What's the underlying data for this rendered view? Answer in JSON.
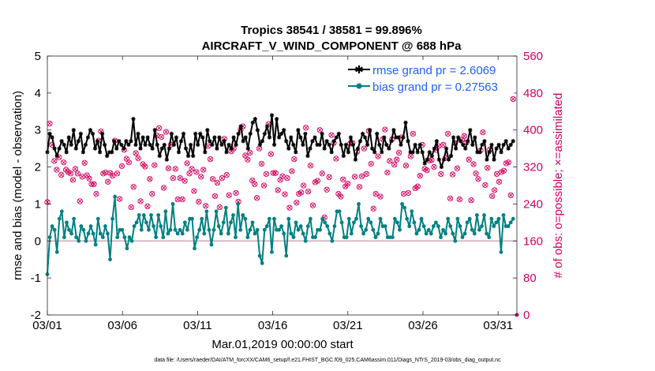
{
  "chart_data": {
    "type": "line",
    "title": "Tropics 38541 / 38581 = 99.896%",
    "subtitle": "AIRCRAFT_V_WIND_COMPONENT @ 688 hPa",
    "ylabel": "rmse and bias (model - observation)",
    "ylabel_right": "# of obs: o=possible; ×=assimilated",
    "xlabel": "Mar.01,2019 00:00:00 start",
    "footer": "data file: /Users/raeder/DAI/ATM_forcXX/CAM6_setup/f.e21.FHIST_BGC.f09_025.CAM6assim.011/Diags_NTrS_2019-03/obs_diag_output.nc",
    "ylim": [
      -2,
      5
    ],
    "yticks": [
      "-2",
      "-1",
      "0",
      "1",
      "2",
      "3",
      "4",
      "5"
    ],
    "ylim_right": [
      0,
      560
    ],
    "yticks_right": [
      "0",
      "80",
      "160",
      "240",
      "320",
      "400",
      "480",
      "560"
    ],
    "xlim": [
      0,
      31.25
    ],
    "xtick_positions": [
      0,
      5,
      10,
      15,
      20,
      25,
      30
    ],
    "xtick_labels": [
      "03/01",
      "03/06",
      "03/11",
      "03/16",
      "03/21",
      "03/26",
      "03/31"
    ],
    "series": [
      {
        "name": "rmse grand pr = 2.6069",
        "color": "#000000",
        "values": [
          2.4,
          2.9,
          2.8,
          2.5,
          2.3,
          2.5,
          2.7,
          2.6,
          2.4,
          2.8,
          2.6,
          3.0,
          2.5,
          2.7,
          2.9,
          2.4,
          2.6,
          2.8,
          3.0,
          2.9,
          2.5,
          2.7,
          2.4,
          2.9,
          2.6,
          2.3,
          2.4,
          2.4,
          2.7,
          2.5,
          2.7,
          2.6,
          2.5,
          2.7,
          2.6,
          2.7,
          3.3,
          2.6,
          2.9,
          2.5,
          2.8,
          2.6,
          2.8,
          2.6,
          2.5,
          3.0,
          2.6,
          2.3,
          2.5,
          2.6,
          2.2,
          2.5,
          2.9,
          2.6,
          2.8,
          2.4,
          2.7,
          2.9,
          2.5,
          2.3,
          2.6,
          2.3,
          2.9,
          2.6,
          2.9,
          2.8,
          2.4,
          3.0,
          2.7,
          2.6,
          2.8,
          2.5,
          2.8,
          2.6,
          2.7,
          2.4,
          2.6,
          2.5,
          2.8,
          2.6,
          2.9,
          3.1,
          2.7,
          2.8,
          2.5,
          2.9,
          3.2,
          3.3,
          3.0,
          2.6,
          2.7,
          2.9,
          3.1,
          2.8,
          3.4,
          2.6,
          3.3,
          2.8,
          2.9,
          3.0,
          2.7,
          2.5,
          2.8,
          2.6,
          2.4,
          3.0,
          2.8,
          2.6,
          2.9,
          2.3,
          2.5,
          2.7,
          2.8,
          2.6,
          2.6,
          2.9,
          2.5,
          2.7,
          2.6,
          2.4,
          2.7,
          2.8,
          2.9,
          2.6,
          2.3,
          2.6,
          2.4,
          2.8,
          2.6,
          2.2,
          2.5,
          2.7,
          2.9,
          2.8,
          2.6,
          3.0,
          2.5,
          2.4,
          2.9,
          2.6,
          2.4,
          2.8,
          2.6,
          2.5,
          2.7,
          3.0,
          2.8,
          2.8,
          2.6,
          2.8,
          3.2,
          2.7,
          2.4,
          2.4,
          2.6,
          2.4,
          2.6,
          2.4,
          2.1,
          2.2,
          2.4,
          2.3,
          2.5,
          2.7,
          2.2,
          2.0,
          2.2,
          2.5,
          2.2,
          2.3,
          2.8,
          2.5,
          2.8,
          2.7,
          2.6,
          2.5,
          2.7,
          3.0,
          2.6,
          2.8,
          2.4,
          2.4,
          2.6,
          2.7,
          2.2,
          2.4,
          2.6,
          2.2,
          2.5,
          2.6,
          2.4,
          2.6,
          2.7,
          2.5,
          2.6,
          2.7
        ]
      },
      {
        "name": "bias grand pr = 0.27563",
        "color": "#008080",
        "values": [
          -0.9,
          0.1,
          0.4,
          0.3,
          -0.3,
          0.6,
          0.8,
          0.1,
          0.5,
          0.3,
          0.2,
          0.6,
          0.1,
          0.0,
          0.4,
          0.3,
          0.0,
          0.2,
          0.4,
          0.2,
          -0.1,
          0.6,
          0.2,
          0.1,
          0.4,
          0.2,
          -0.5,
          0.6,
          1.2,
          0.1,
          0.3,
          0.3,
          0.1,
          -0.2,
          0.1,
          0.0,
          0.4,
          0.5,
          0.7,
          0.3,
          0.7,
          0.5,
          0.3,
          0.7,
          0.4,
          0.1,
          0.7,
          0.4,
          0.1,
          0.8,
          0.2,
          0.3,
          1.0,
          0.3,
          0.2,
          0.3,
          0.2,
          0.5,
          0.3,
          0.6,
          0.6,
          -0.2,
          0.1,
          0.3,
          0.6,
          0.2,
          0.8,
          0.3,
          -0.1,
          0.3,
          0.8,
          0.4,
          0.2,
          0.5,
          0.9,
          0.2,
          0.5,
          0.7,
          0.1,
          1.0,
          0.3,
          0.7,
          0.6,
          0.1,
          0.3,
          0.5,
          0.2,
          0.3,
          -0.4,
          -0.6,
          0.3,
          0.4,
          0.6,
          -0.3,
          0.6,
          0.3,
          0.3,
          0.4,
          0.2,
          -0.4,
          0.6,
          0.2,
          0.1,
          0.5,
          0.3,
          0.4,
          0.2,
          0.0,
          0.4,
          0.6,
          0.1,
          0.1,
          0.3,
          0.3,
          0.6,
          0.5,
          0.4,
          0.2,
          0.0,
          0.4,
          0.8,
          0.8,
          0.5,
          0.1,
          0.1,
          0.6,
          0.2,
          0.5,
          0.6,
          1.0,
          0.4,
          0.2,
          0.3,
          0.6,
          0.5,
          0.3,
          0.1,
          0.2,
          0.6,
          0.4,
          0.4,
          0.1,
          0.1,
          0.1,
          0.6,
          0.5,
          0.3,
          1.0,
          0.9,
          0.6,
          0.4,
          0.8,
          0.5,
          0.2,
          0.3,
          0.6,
          0.4,
          0.2,
          0.3,
          0.2,
          0.4,
          0.5,
          0.4,
          0.1,
          0.3,
          0.2,
          0.6,
          0.4,
          0.2,
          0.0,
          0.6,
          0.4,
          0.1,
          0.2,
          0.5,
          0.6,
          0.3,
          0.2,
          0.7,
          0.3,
          0.4,
          0.7,
          0.2,
          0.1,
          0.6,
          0.4,
          0.5,
          0.6,
          -0.3,
          0.7,
          0.4,
          0.4,
          0.5,
          0.6
        ]
      }
    ],
    "obs_series": {
      "name": "# of obs",
      "color": "#d6005e",
      "possible": [
        244,
        414,
        368,
        333,
        314,
        341,
        303,
        330,
        314,
        309,
        306,
        292,
        316,
        306,
        246,
        299,
        329,
        302,
        295,
        283,
        283,
        262,
        377,
        397,
        306,
        308,
        288,
        307,
        301,
        377,
        306,
        251,
        322,
        357,
        338,
        330,
        233,
        277,
        350,
        339,
        246,
        326,
        321,
        235,
        294,
        262,
        324,
        388,
        404,
        385,
        275,
        396,
        317,
        368,
        296,
        316,
        250,
        296,
        250,
        290,
        328,
        306,
        316,
        268,
        309,
        245,
        299,
        314,
        236,
        365,
        337,
        294,
        257,
        286,
        233,
        296,
        381,
        303,
        259,
        354,
        360,
        264,
        245,
        401,
        408,
        345,
        336,
        351,
        291,
        283,
        253,
        360,
        327,
        280,
        305,
        413,
        348,
        307,
        307,
        270,
        292,
        300,
        261,
        296,
        232,
        311,
        337,
        243,
        262,
        265,
        280,
        405,
        267,
        323,
        237,
        287,
        290,
        400,
        306,
        211,
        271,
        298,
        389,
        372,
        338,
        262,
        256,
        293,
        278,
        284,
        371,
        372,
        299,
        353,
        277,
        300,
        360,
        305,
        398,
        327,
        230,
        262,
        343,
        256,
        380,
        401,
        308,
        333,
        380,
        325,
        336,
        351,
        384,
        262,
        323,
        264,
        343,
        392,
        274,
        278,
        301,
        368,
        316,
        313,
        334,
        335,
        320,
        357,
        365,
        305,
        368,
        340,
        392,
        252,
        304,
        372,
        317,
        250,
        379,
        387,
        373,
        336,
        248,
        326,
        306,
        294,
        356,
        395,
        281,
        318,
        358,
        257,
        270,
        305,
        288,
        309,
        312,
        328,
        330,
        259,
        467
      ],
      "assimilated": [
        244,
        414,
        368,
        333,
        314,
        341,
        303,
        330,
        314,
        309,
        306,
        292,
        316,
        306,
        246,
        299,
        329,
        302,
        295,
        283,
        283,
        262,
        377,
        397,
        306,
        308,
        288,
        307,
        301,
        377,
        306,
        251,
        322,
        357,
        338,
        330,
        233,
        277,
        350,
        339,
        246,
        326,
        321,
        235,
        294,
        262,
        324,
        388,
        404,
        385,
        275,
        396,
        317,
        368,
        296,
        316,
        250,
        296,
        250,
        290,
        328,
        306,
        316,
        268,
        309,
        245,
        299,
        314,
        236,
        365,
        337,
        294,
        257,
        286,
        233,
        296,
        381,
        303,
        259,
        354,
        360,
        264,
        245,
        401,
        408,
        345,
        336,
        351,
        291,
        283,
        253,
        360,
        327,
        280,
        305,
        413,
        348,
        307,
        307,
        270,
        292,
        300,
        261,
        296,
        232,
        311,
        337,
        243,
        262,
        265,
        280,
        405,
        267,
        323,
        237,
        287,
        290,
        400,
        306,
        211,
        271,
        298,
        389,
        372,
        338,
        262,
        256,
        293,
        278,
        284,
        371,
        372,
        299,
        353,
        277,
        300,
        360,
        305,
        398,
        327,
        230,
        262,
        343,
        256,
        380,
        401,
        308,
        333,
        380,
        325,
        336,
        351,
        384,
        262,
        323,
        264,
        343,
        392,
        274,
        278,
        301,
        368,
        316,
        313,
        334,
        335,
        320,
        357,
        365,
        305,
        368,
        340,
        392,
        252,
        304,
        372,
        317,
        250,
        379,
        387,
        373,
        336,
        248,
        326,
        306,
        294,
        356,
        395,
        281,
        318,
        358,
        257,
        270,
        305,
        288,
        309,
        312,
        328,
        330,
        259,
        467
      ],
      "endpoint": 0
    },
    "zero_line": 0,
    "legend": "top-right"
  }
}
